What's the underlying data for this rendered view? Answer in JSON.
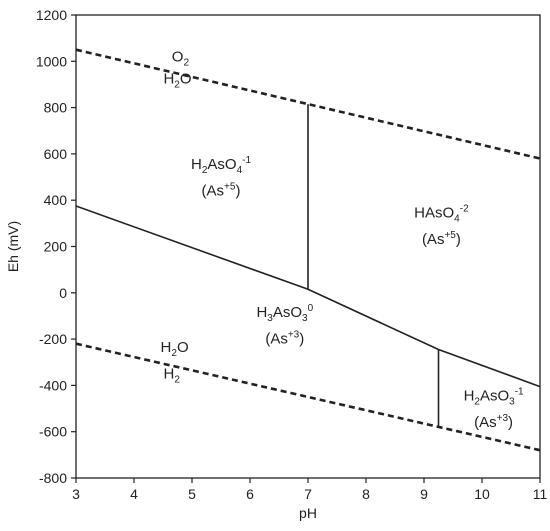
{
  "chart_data": {
    "type": "line",
    "xlabel": "pH",
    "ylabel": "Eh (mV)",
    "xlim": [
      3,
      11
    ],
    "ylim": [
      -800,
      1200
    ],
    "x_ticks": [
      "3",
      "4",
      "5",
      "6",
      "7",
      "8",
      "9",
      "10",
      "11"
    ],
    "y_ticks": [
      "-800",
      "-600",
      "-400",
      "-200",
      "0",
      "200",
      "400",
      "600",
      "800",
      "1000",
      "1200"
    ],
    "grid": false,
    "series": [
      {
        "style": "dashed",
        "points": [
          [
            3,
            1050
          ],
          [
            11,
            580
          ]
        ]
      },
      {
        "style": "dashed",
        "points": [
          [
            3,
            -220
          ],
          [
            11,
            -680
          ]
        ]
      },
      {
        "style": "solid",
        "points": [
          [
            3,
            375
          ],
          [
            7,
            15
          ],
          [
            9.25,
            -245
          ],
          [
            11,
            -405
          ]
        ]
      },
      {
        "style": "solid",
        "points": [
          [
            7,
            15
          ],
          [
            7,
            815
          ]
        ]
      },
      {
        "style": "solid",
        "points": [
          [
            9.25,
            -245
          ],
          [
            9.25,
            -580
          ]
        ]
      }
    ],
    "annotations": [
      {
        "parts": [
          [
            "O",
            ""
          ],
          [
            "2",
            "sub"
          ]
        ],
        "x": 4.8,
        "y": 1000
      },
      {
        "parts": [
          [
            "H",
            ""
          ],
          [
            "2",
            "sub"
          ],
          [
            "O",
            ""
          ]
        ],
        "x": 4.75,
        "y": 905
      },
      {
        "parts": [
          [
            "H",
            ""
          ],
          [
            "2",
            "sub"
          ],
          [
            "AsO",
            ""
          ],
          [
            "4",
            "sub"
          ],
          [
            "-1",
            "sup"
          ]
        ],
        "x": 5.5,
        "y": 535
      },
      {
        "parts": [
          [
            "(As",
            ""
          ],
          [
            "+5",
            "sup"
          ],
          [
            ")",
            ""
          ]
        ],
        "x": 5.5,
        "y": 420
      },
      {
        "parts": [
          [
            "HAsO",
            ""
          ],
          [
            "4",
            "sub"
          ],
          [
            "-2",
            "sup"
          ]
        ],
        "x": 9.3,
        "y": 325
      },
      {
        "parts": [
          [
            "(As",
            ""
          ],
          [
            "+5",
            "sup"
          ],
          [
            ")",
            ""
          ]
        ],
        "x": 9.3,
        "y": 210
      },
      {
        "parts": [
          [
            "H",
            ""
          ],
          [
            "3",
            "sub"
          ],
          [
            "AsO",
            ""
          ],
          [
            "3",
            "sub"
          ],
          [
            "0",
            "sup"
          ]
        ],
        "x": 6.6,
        "y": -105
      },
      {
        "parts": [
          [
            "(As",
            ""
          ],
          [
            "+3",
            "sup"
          ],
          [
            ")",
            ""
          ]
        ],
        "x": 6.6,
        "y": -220
      },
      {
        "parts": [
          [
            "H",
            ""
          ],
          [
            "2",
            "sub"
          ],
          [
            "O",
            ""
          ]
        ],
        "x": 4.7,
        "y": -255
      },
      {
        "parts": [
          [
            "H",
            ""
          ],
          [
            "2",
            "sub"
          ]
        ],
        "x": 4.65,
        "y": -370
      },
      {
        "parts": [
          [
            "H",
            ""
          ],
          [
            "2",
            "sub"
          ],
          [
            "AsO",
            ""
          ],
          [
            "3",
            "sub"
          ],
          [
            "-1",
            "sup"
          ]
        ],
        "x": 10.2,
        "y": -465
      },
      {
        "parts": [
          [
            "(As",
            ""
          ],
          [
            "+3",
            "sup"
          ],
          [
            ")",
            ""
          ]
        ],
        "x": 10.2,
        "y": -580
      }
    ]
  }
}
